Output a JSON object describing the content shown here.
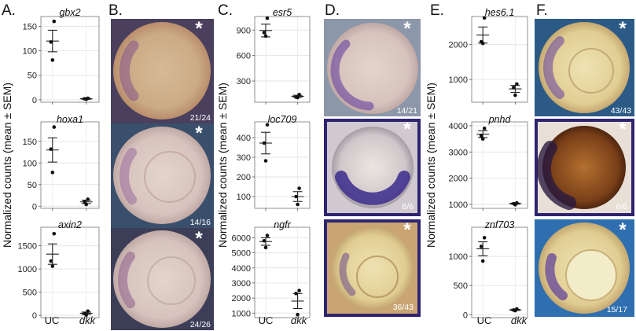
{
  "figure": {
    "panel_labels": [
      "A.",
      "B.",
      "C.",
      "D.",
      "E.",
      "F."
    ],
    "ylabel": "Normalized counts (mean ± SEM)",
    "x_categories": [
      "UC",
      "dkk"
    ],
    "image_panels": [
      {
        "count": "21/24",
        "mark": "*"
      },
      {
        "count": "14/16",
        "mark": "*"
      },
      {
        "count": "24/26",
        "mark": "*"
      },
      {
        "count": "14/21",
        "mark": "*"
      },
      {
        "count": "6/6",
        "mark": "*"
      },
      {
        "count": "36/43",
        "mark": "*"
      },
      {
        "count": "43/43",
        "mark": "*"
      },
      {
        "count": "6/6",
        "mark": "*"
      },
      {
        "count": "15/17",
        "mark": "*"
      }
    ]
  },
  "chart_data": [
    {
      "type": "scatter",
      "title": "gbx2",
      "categories": [
        "UC",
        "dkk"
      ],
      "ylim": [
        -5,
        170
      ],
      "yticks": [
        0,
        50,
        100,
        150
      ],
      "points": [
        [
          160,
          118,
          81
        ],
        [
          3,
          2,
          1
        ]
      ],
      "mean": [
        120,
        2
      ],
      "sem": [
        22,
        1
      ]
    },
    {
      "type": "scatter",
      "title": "hoxa1",
      "categories": [
        "UC",
        "dkk"
      ],
      "ylim": [
        -5,
        195
      ],
      "yticks": [
        0,
        50,
        100,
        150
      ],
      "points": [
        [
          183,
          132,
          78
        ],
        [
          16,
          10,
          4
        ]
      ],
      "mean": [
        130,
        10
      ],
      "sem": [
        28,
        4
      ]
    },
    {
      "type": "scatter",
      "title": "axin2",
      "categories": [
        "UC",
        "dkk"
      ],
      "ylim": [
        -50,
        1900
      ],
      "yticks": [
        0,
        500,
        1000,
        1500
      ],
      "points": [
        [
          1760,
          1170,
          1060
        ],
        [
          90,
          40,
          10
        ]
      ],
      "mean": [
        1320,
        45
      ],
      "sem": [
        220,
        25
      ]
    },
    {
      "type": "scatter",
      "title": "esr5",
      "categories": [
        "UC",
        "dkk"
      ],
      "ylim": [
        50,
        1060
      ],
      "yticks": [
        300,
        600,
        900
      ],
      "points": [
        [
          1040,
          870,
          830
        ],
        [
          140,
          110,
          105
        ]
      ],
      "mean": [
        895,
        120
      ],
      "sem": [
        75,
        12
      ]
    },
    {
      "type": "scatter",
      "title": "loc709",
      "categories": [
        "UC",
        "dkk"
      ],
      "ylim": [
        40,
        480
      ],
      "yticks": [
        100,
        200,
        300,
        400
      ],
      "points": [
        [
          465,
          372,
          282
        ],
        [
          142,
          100,
          60
        ]
      ],
      "mean": [
        372,
        100
      ],
      "sem": [
        55,
        25
      ]
    },
    {
      "type": "scatter",
      "title": "ngfr",
      "categories": [
        "UC",
        "dkk"
      ],
      "ylim": [
        700,
        6700
      ],
      "yticks": [
        1000,
        2000,
        3000,
        4000,
        5000,
        6000
      ],
      "points": [
        [
          6150,
          5800,
          5350
        ],
        [
          2500,
          2300,
          900
        ]
      ],
      "mean": [
        5750,
        1800
      ],
      "sem": [
        250,
        500
      ]
    },
    {
      "type": "scatter",
      "title": "hes6.1",
      "categories": [
        "UC",
        "dkk"
      ],
      "ylim": [
        350,
        2800
      ],
      "yticks": [
        1000,
        2000
      ],
      "points": [
        [
          2760,
          2080,
          2030
        ],
        [
          870,
          770,
          550
        ]
      ],
      "mean": [
        2270,
        730
      ],
      "sem": [
        230,
        100
      ]
    },
    {
      "type": "scatter",
      "title": "pnhd",
      "categories": [
        "UC",
        "dkk"
      ],
      "ylim": [
        850,
        4150
      ],
      "yticks": [
        1000,
        2000,
        3000,
        4000
      ],
      "points": [
        [
          3900,
          3620,
          3500
        ],
        [
          1060,
          1030,
          990
        ]
      ],
      "mean": [
        3680,
        1030
      ],
      "sem": [
        130,
        20
      ]
    },
    {
      "type": "scatter",
      "title": "znf703",
      "categories": [
        "UC",
        "dkk"
      ],
      "ylim": [
        -50,
        1500
      ],
      "yticks": [
        0,
        500,
        1000
      ],
      "points": [
        [
          1320,
          1170,
          920
        ],
        [
          100,
          80,
          70
        ]
      ],
      "mean": [
        1130,
        83
      ],
      "sem": [
        120,
        10
      ]
    }
  ]
}
